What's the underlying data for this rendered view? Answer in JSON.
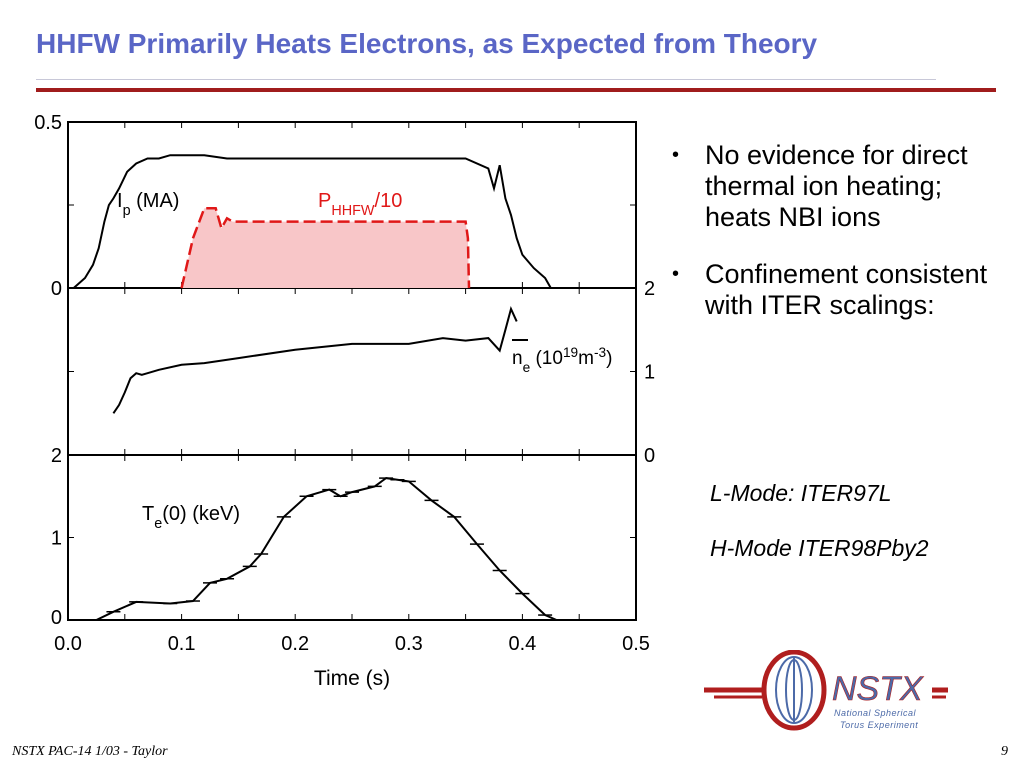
{
  "slide": {
    "title": "HHFW Primarily Heats Electrons, as Expected from Theory",
    "footer_left": "NSTX PAC-14 1/03 - Taylor",
    "page_number": "9"
  },
  "bullets": [
    "No evidence for direct thermal ion heating; heats NBI ions",
    "Confinement consistent with ITER scalings:"
  ],
  "sub_items": [
    "L-Mode: ITER97L",
    "H-Mode ITER98Pby2"
  ],
  "logo": {
    "text": "NSTX",
    "line1": "National Spherical",
    "line2": "Torus Experiment",
    "colors": {
      "red": "#b01e1e",
      "blue": "#4c6aa8"
    }
  },
  "chart_data": {
    "type": "line",
    "xlabel": "Time (s)",
    "xlim": [
      0.0,
      0.5
    ],
    "xticks": [
      "0.0",
      "0.1",
      "0.2",
      "0.3",
      "0.4",
      "0.5"
    ],
    "panels": [
      {
        "id": "top",
        "ylim": [
          0,
          0.5
        ],
        "left_ticks": [
          "0.5",
          "0"
        ],
        "series": [
          {
            "name": "Ip (MA)",
            "color": "#000000",
            "style": "solid",
            "x": [
              0.005,
              0.015,
              0.022,
              0.027,
              0.032,
              0.036,
              0.04,
              0.045,
              0.052,
              0.06,
              0.07,
              0.08,
              0.09,
              0.1,
              0.12,
              0.14,
              0.16,
              0.2,
              0.25,
              0.3,
              0.35,
              0.37,
              0.375,
              0.38,
              0.385,
              0.39,
              0.395,
              0.4,
              0.41,
              0.42,
              0.425
            ],
            "y": [
              0.0,
              0.03,
              0.07,
              0.12,
              0.2,
              0.25,
              0.27,
              0.3,
              0.35,
              0.375,
              0.39,
              0.39,
              0.4,
              0.4,
              0.4,
              0.39,
              0.39,
              0.39,
              0.39,
              0.39,
              0.39,
              0.36,
              0.3,
              0.37,
              0.27,
              0.22,
              0.15,
              0.1,
              0.06,
              0.03,
              0.0
            ]
          },
          {
            "name": "PHHFW/10",
            "color": "#e01818",
            "fill": "#f8c6c8",
            "style": "dashed",
            "x": [
              0.1,
              0.11,
              0.12,
              0.13,
              0.135,
              0.14,
              0.145,
              0.2,
              0.3,
              0.35,
              0.352,
              0.353
            ],
            "y": [
              0.0,
              0.15,
              0.24,
              0.24,
              0.18,
              0.21,
              0.2,
              0.2,
              0.2,
              0.2,
              0.15,
              0.0
            ]
          }
        ],
        "labels": [
          {
            "base": "I",
            "sub": "p",
            "rest": " (MA)",
            "color": "#000000"
          },
          {
            "base": "P",
            "sub": "HHFW",
            "rest": "/10",
            "color": "#e01818"
          }
        ]
      },
      {
        "id": "middle",
        "ylim": [
          0,
          2
        ],
        "right_ticks": [
          "2",
          "1",
          "0"
        ],
        "series": [
          {
            "name": "ne (10^19 m^-3)",
            "color": "#000000",
            "style": "solid",
            "x": [
              0.04,
              0.045,
              0.05,
              0.055,
              0.06,
              0.065,
              0.07,
              0.08,
              0.1,
              0.12,
              0.15,
              0.2,
              0.25,
              0.3,
              0.33,
              0.35,
              0.37,
              0.38,
              0.385,
              0.39,
              0.395
            ],
            "y": [
              0.5,
              0.6,
              0.75,
              0.92,
              0.98,
              0.96,
              0.98,
              1.02,
              1.08,
              1.1,
              1.16,
              1.26,
              1.33,
              1.33,
              1.4,
              1.37,
              1.4,
              1.25,
              1.5,
              1.75,
              1.6
            ]
          }
        ],
        "label": {
          "base": "n",
          "sub": "e",
          "rest": " (10",
          "sup": "19",
          "rest2": "m",
          "sup2": "-3",
          "rest3": ")"
        }
      },
      {
        "id": "bottom",
        "ylim": [
          0,
          2
        ],
        "left_ticks": [
          "2",
          "1",
          "0"
        ],
        "series": [
          {
            "name": "Te(0) (keV)",
            "color": "#000000",
            "style": "solid",
            "x": [
              0.01,
              0.025,
              0.04,
              0.06,
              0.09,
              0.11,
              0.125,
              0.14,
              0.16,
              0.17,
              0.19,
              0.21,
              0.23,
              0.24,
              0.25,
              0.27,
              0.28,
              0.29,
              0.3,
              0.32,
              0.34,
              0.36,
              0.38,
              0.4,
              0.42,
              0.43
            ],
            "y": [
              0.0,
              0.0,
              0.1,
              0.22,
              0.2,
              0.23,
              0.45,
              0.5,
              0.65,
              0.8,
              1.25,
              1.5,
              1.58,
              1.5,
              1.55,
              1.62,
              1.72,
              1.7,
              1.68,
              1.45,
              1.25,
              0.92,
              0.6,
              0.32,
              0.06,
              0.0
            ]
          }
        ],
        "label": {
          "base": "T",
          "sub": "e",
          "rest": "(0) (keV)"
        }
      }
    ]
  }
}
